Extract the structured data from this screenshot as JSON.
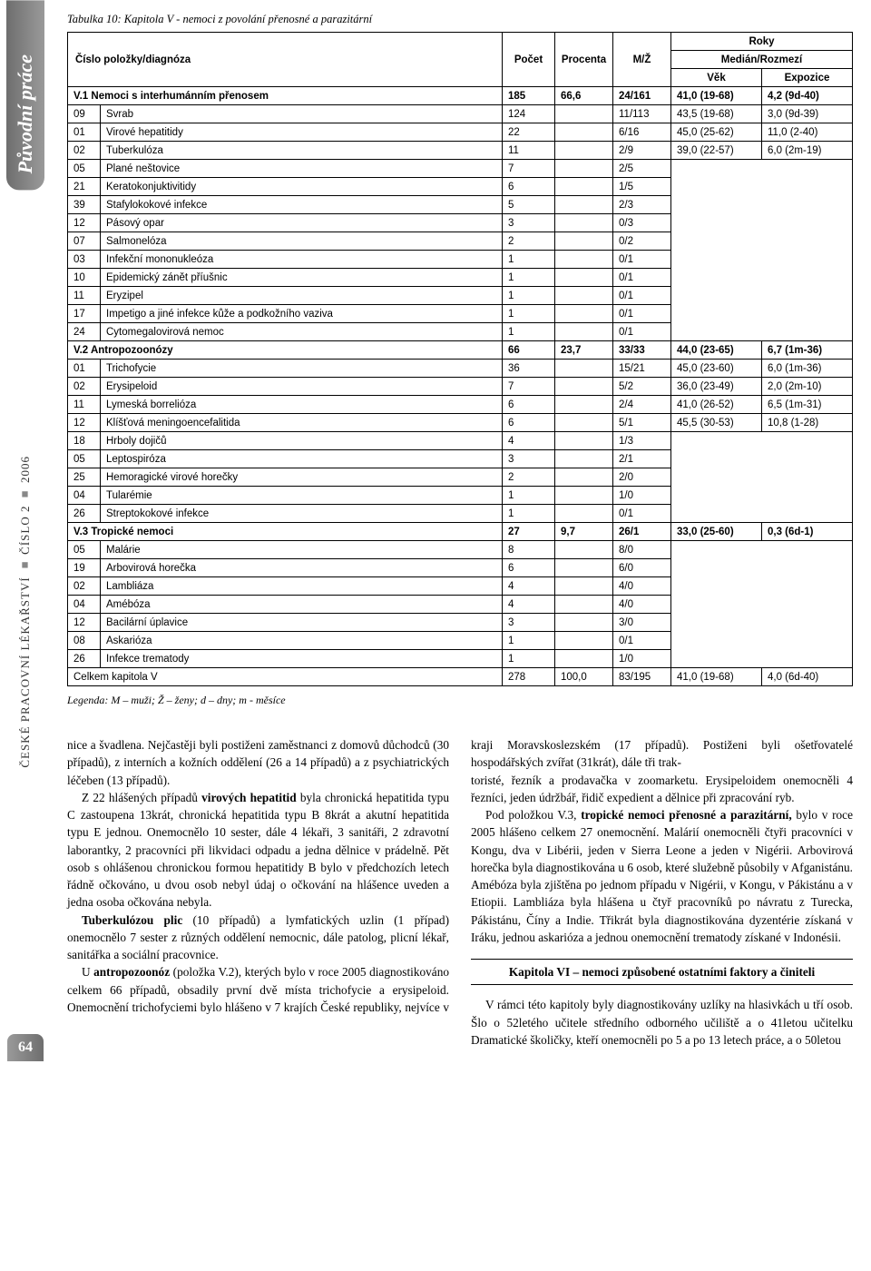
{
  "rail": {
    "top": "Původní práce",
    "mid_journal": "ČESKÉ PRACOVNÍ LÉKAŘSTVÍ",
    "mid_issue": "ČÍSLO 2",
    "mid_year": "2006",
    "page": "64"
  },
  "table": {
    "caption": "Tabulka 10: Kapitola V - nemoci z povolání přenosné a parazitární",
    "legend": "Legenda: M – muži; Ž – ženy; d – dny; m - měsíce",
    "header": {
      "col1": "Číslo položky/diagnóza",
      "col2": "Počet",
      "col3": "Procenta",
      "col4": "M/Ž",
      "roky": "Roky",
      "roky_sub": "Medián/Rozmezí",
      "vek": "Věk",
      "exp": "Expozice"
    },
    "section1": {
      "title": "V.1 Nemoci s interhumánním přenosem",
      "count": "185",
      "pct": "66,6",
      "mz": "24/161",
      "vek": "41,0 (19-68)",
      "exp": "4,2 (9d-40)"
    },
    "rows1": [
      {
        "code": "09",
        "name": "Svrab",
        "count": "124",
        "mz": "11/113",
        "vek": "43,5 (19-68)",
        "exp": "3,0 (9d-39)"
      },
      {
        "code": "01",
        "name": "Virové hepatitidy",
        "count": "22",
        "mz": "6/16",
        "vek": "45,0 (25-62)",
        "exp": "11,0 (2-40)"
      },
      {
        "code": "02",
        "name": "Tuberkulóza",
        "count": "11",
        "mz": "2/9",
        "vek": "39,0 (22-57)",
        "exp": "6,0 (2m-19)"
      }
    ],
    "rows1_blank": [
      {
        "code": "05",
        "name": "Plané neštovice",
        "count": "7",
        "mz": "2/5"
      },
      {
        "code": "21",
        "name": "Keratokonjuktivitidy",
        "count": "6",
        "mz": "1/5"
      },
      {
        "code": "39",
        "name": "Stafylokokové infekce",
        "count": "5",
        "mz": "2/3"
      },
      {
        "code": "12",
        "name": "Pásový opar",
        "count": "3",
        "mz": "0/3"
      },
      {
        "code": "07",
        "name": "Salmonelóza",
        "count": "2",
        "mz": "0/2"
      },
      {
        "code": "03",
        "name": "Infekční mononukleóza",
        "count": "1",
        "mz": "0/1"
      },
      {
        "code": "10",
        "name": "Epidemický zánět příušnic",
        "count": "1",
        "mz": "0/1"
      },
      {
        "code": "11",
        "name": "Eryzipel",
        "count": "1",
        "mz": "0/1"
      },
      {
        "code": "17",
        "name": "Impetigo a jiné infekce kůže a podkožního vaziva",
        "count": "1",
        "mz": "0/1"
      },
      {
        "code": "24",
        "name": "Cytomegalovirová nemoc",
        "count": "1",
        "mz": "0/1"
      }
    ],
    "section2": {
      "title": "V.2 Antropozoonózy",
      "count": "66",
      "pct": "23,7",
      "mz": "33/33",
      "vek": "44,0 (23-65)",
      "exp": "6,7 (1m-36)"
    },
    "rows2": [
      {
        "code": "01",
        "name": "Trichofycie",
        "count": "36",
        "mz": "15/21",
        "vek": "45,0 (23-60)",
        "exp": "6,0 (1m-36)"
      },
      {
        "code": "02",
        "name": "Erysipeloid",
        "count": "7",
        "mz": "5/2",
        "vek": "36,0 (23-49)",
        "exp": "2,0 (2m-10)"
      },
      {
        "code": "11",
        "name": "Lymeská borrelióza",
        "count": "6",
        "mz": "2/4",
        "vek": "41,0 (26-52)",
        "exp": "6,5 (1m-31)"
      },
      {
        "code": "12",
        "name": "Klíšťová meningoencefalitida",
        "count": "6",
        "mz": "5/1",
        "vek": "45,5 (30-53)",
        "exp": "10,8 (1-28)"
      }
    ],
    "rows2_blank": [
      {
        "code": "18",
        "name": "Hrboly dojičů",
        "count": "4",
        "mz": "1/3"
      },
      {
        "code": "05",
        "name": "Leptospiróza",
        "count": "3",
        "mz": "2/1"
      },
      {
        "code": "25",
        "name": "Hemoragické virové horečky",
        "count": "2",
        "mz": "2/0"
      },
      {
        "code": "04",
        "name": "Tularémie",
        "count": "1",
        "mz": "1/0"
      },
      {
        "code": "26",
        "name": "Streptokokové infekce",
        "count": "1",
        "mz": "0/1"
      }
    ],
    "section3": {
      "title": "V.3 Tropické nemoci",
      "count": "27",
      "pct": "9,7",
      "mz": "26/1",
      "vek": "33,0 (25-60)",
      "exp": "0,3 (6d-1)"
    },
    "rows3_blank": [
      {
        "code": "05",
        "name": "Malárie",
        "count": "8",
        "mz": "8/0"
      },
      {
        "code": "19",
        "name": "Arbovirová horečka",
        "count": "6",
        "mz": "6/0"
      },
      {
        "code": "02",
        "name": "Lambliáza",
        "count": "4",
        "mz": "4/0"
      },
      {
        "code": "04",
        "name": "Amébóza",
        "count": "4",
        "mz": "4/0"
      },
      {
        "code": "12",
        "name": "Bacilární úplavice",
        "count": "3",
        "mz": "3/0"
      },
      {
        "code": "08",
        "name": "Askarióza",
        "count": "1",
        "mz": "0/1"
      },
      {
        "code": "26",
        "name": "Infekce trematody",
        "count": "1",
        "mz": "1/0"
      }
    ],
    "total": {
      "label": "Celkem kapitola V",
      "count": "278",
      "pct": "100,0",
      "mz": "83/195",
      "vek": "41,0 (19-68)",
      "exp": "4,0 (6d-40)"
    }
  },
  "body": {
    "p1": "nice a švadlena. Nejčastěji byli postiženi zaměstnanci z domovů důchodců (30 případů), z interních a kožních oddělení (26 a 14 případů) a z psychiatrických léčeben (13 případů).",
    "p2a": "Z 22 hlášených případů ",
    "p2b": "virových hepatitid",
    "p2c": " byla chronická hepatitida typu C zastoupena 13krát, chronická hepatitida typu B 8krát a akutní hepatitida typu E jednou. Onemocnělo 10 sester, dále 4 lékaři, 3 sanitáři, 2 zdravotní laborantky, 2 pracovníci při likvidaci odpadu a jedna dělnice v prádelně. Pět osob s ohlášenou chronickou formou hepatitidy B bylo v předchozích letech řádně očkováno, u dvou osob nebyl údaj o očkování na hlášence uveden a jedna osoba očkována nebyla.",
    "p3a": "Tuberkulózou plic",
    "p3b": " (10 případů) a lymfatických uzlin (1 případ) onemocnělo 7 sester z různých oddělení nemocnic, dále patolog, plicní lékař, sanitářka a sociální pracovnice.",
    "p4a": "U ",
    "p4b": "antropozoonóz",
    "p4c": " (položka V.2), kterých bylo v roce 2005 diagnostikováno celkem 66 případů, obsadily první dvě místa trichofycie a erysipeloid. Onemocnění trichofyciemi bylo hlášeno v 7 krajích České republiky, nejvíce v kraji Moravskoslezském (17 případů). Postiženi byli ošetřovatelé hospodářských zvířat (31krát), dále tři trak-",
    "p5": "toristé, řezník a prodavačka v zoomarketu. Erysipeloidem onemocněli 4 řezníci, jeden údržbář, řidič expedient a dělnice při zpracování ryb.",
    "p6a": "Pod položkou V.3, ",
    "p6b": "tropické nemoci přenosné a parazitární,",
    "p6c": " bylo v roce 2005 hlášeno celkem 27 onemocnění. Malárií onemocněli čtyři pracovníci v Kongu, dva v Libérii, jeden v Sierra Leone a jeden v Nigérii. Arbovirová horečka byla diagnostikována u 6 osob, které služebně působily v Afganistánu. Amébóza byla zjištěna po jednom případu v Nigérii, v Kongu, v Pákistánu a v Etiopii. Lambliáza byla hlášena u čtyř pracovníků po návratu z Turecka, Pákistánu, Číny a Indie. Třikrát byla diagnostikována dyzentérie získaná v Iráku, jednou askarióza a jednou onemocnění trematody získané v Indonésii.",
    "heading": "Kapitola VI – nemoci způsobené ostatními faktory a činiteli",
    "p7": "V rámci této kapitoly byly diagnostikovány uzlíky na hlasivkách u tří osob. Šlo o 52letého učitele středního odborného učiliště a o 41letou učitelku Dramatické školičky, kteří onemocněli po 5 a po 13 letech práce, a o 50letou"
  }
}
